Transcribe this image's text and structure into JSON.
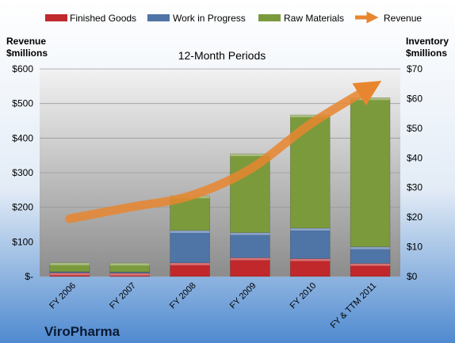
{
  "chart_data": {
    "type": "bar",
    "subtitle": "12-Month Periods",
    "company": "ViroPharma",
    "left_axis": {
      "label_line1": "Revenue",
      "label_line2": "$millions",
      "ticks": [
        "$-",
        "$100",
        "$200",
        "$300",
        "$400",
        "$500",
        "$600"
      ],
      "range": [
        0,
        600
      ]
    },
    "right_axis": {
      "label_line1": "Inventory",
      "label_line2": "$millions",
      "ticks": [
        "$0",
        "$10",
        "$20",
        "$30",
        "$40",
        "$50",
        "$60",
        "$70"
      ],
      "range": [
        0,
        70
      ]
    },
    "categories": [
      "FY 2006",
      "FY 2007",
      "FY 2008",
      "FY 2009",
      "FY 2010",
      "FY & TTM 2011"
    ],
    "series": [
      {
        "name": "Finished Goods",
        "axis": "right",
        "stacked": true,
        "color": "#c0282c",
        "values": [
          1.2,
          1.1,
          4.6,
          6.3,
          6.0,
          4.4
        ]
      },
      {
        "name": "Work in Progress",
        "axis": "right",
        "stacked": true,
        "color": "#4f74a6",
        "values": [
          0.4,
          0.4,
          10.9,
          8.5,
          10.3,
          5.6
        ]
      },
      {
        "name": "Raw Materials",
        "axis": "right",
        "stacked": true,
        "color": "#7b9a3c",
        "values": [
          3.0,
          3.0,
          11.7,
          26.6,
          38.2,
          50.3
        ]
      },
      {
        "name": "Revenue",
        "axis": "left",
        "type": "line",
        "color": "#e8862f",
        "values": [
          167,
          200,
          233,
          310,
          440,
          546
        ]
      }
    ],
    "legend_position": "top",
    "grid": true
  }
}
